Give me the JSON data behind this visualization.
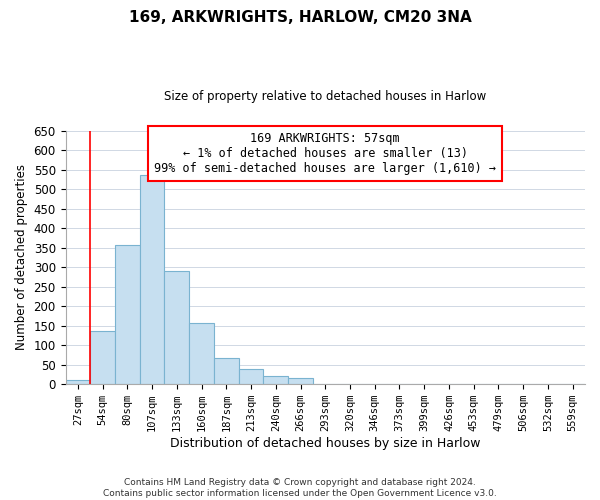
{
  "title": "169, ARKWRIGHTS, HARLOW, CM20 3NA",
  "subtitle": "Size of property relative to detached houses in Harlow",
  "xlabel": "Distribution of detached houses by size in Harlow",
  "ylabel": "Number of detached properties",
  "footer_line1": "Contains HM Land Registry data © Crown copyright and database right 2024.",
  "footer_line2": "Contains public sector information licensed under the Open Government Licence v3.0.",
  "bin_labels": [
    "27sqm",
    "54sqm",
    "80sqm",
    "107sqm",
    "133sqm",
    "160sqm",
    "187sqm",
    "213sqm",
    "240sqm",
    "266sqm",
    "293sqm",
    "320sqm",
    "346sqm",
    "373sqm",
    "399sqm",
    "426sqm",
    "453sqm",
    "479sqm",
    "506sqm",
    "532sqm",
    "559sqm"
  ],
  "bar_heights": [
    10,
    137,
    358,
    535,
    291,
    158,
    67,
    40,
    22,
    15,
    0,
    0,
    0,
    0,
    0,
    1,
    0,
    0,
    0,
    0,
    1
  ],
  "bar_color": "#c6dff0",
  "bar_edge_color": "#7ab3d0",
  "ylim": [
    0,
    650
  ],
  "yticks": [
    0,
    50,
    100,
    150,
    200,
    250,
    300,
    350,
    400,
    450,
    500,
    550,
    600,
    650
  ],
  "annotation_title": "169 ARKWRIGHTS: 57sqm",
  "annotation_line1": "← 1% of detached houses are smaller (13)",
  "annotation_line2": "99% of semi-detached houses are larger (1,610) →"
}
